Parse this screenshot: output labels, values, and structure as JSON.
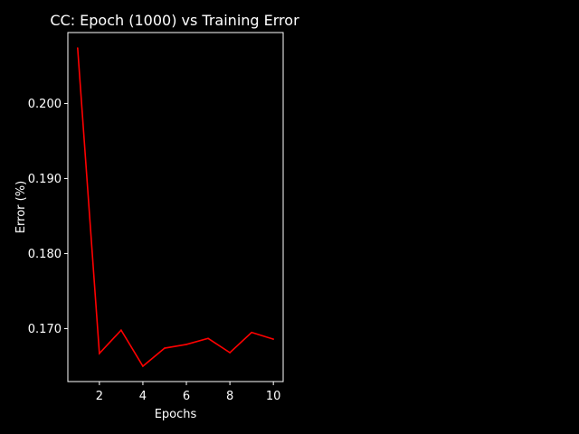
{
  "chart_data": {
    "type": "line",
    "title": "CC: Epoch (1000) vs Training Error",
    "xlabel": "Epochs",
    "ylabel": "Error (%)",
    "x": [
      1,
      2,
      3,
      4,
      5,
      6,
      7,
      8,
      9,
      10
    ],
    "series": [
      {
        "values": [
          0.2074,
          0.1667,
          0.1698,
          0.165,
          0.1674,
          0.1679,
          0.1687,
          0.1668,
          0.1695,
          0.1686
        ],
        "color": "#ff0000"
      }
    ],
    "xticks": [
      2,
      4,
      6,
      8,
      10
    ],
    "yticks": [
      0.17,
      0.18,
      0.19,
      0.2
    ],
    "xtick_labels": [
      "2",
      "4",
      "6",
      "8",
      "10"
    ],
    "ytick_labels": [
      "0.170",
      "0.180",
      "0.190",
      "0.200"
    ],
    "xlim": [
      0.55,
      10.45
    ],
    "ylim": [
      0.16295,
      0.20945
    ],
    "grid": false,
    "background": "#000000",
    "foreground": "#ffffff"
  }
}
